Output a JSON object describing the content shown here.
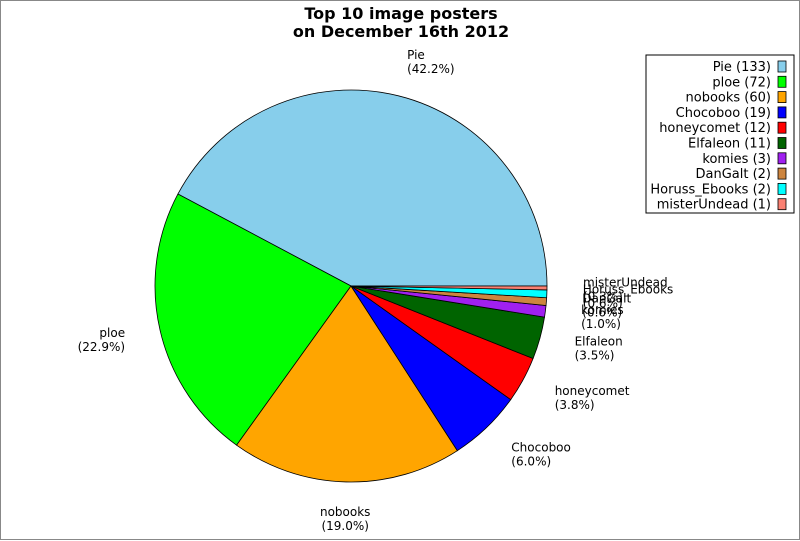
{
  "chart_data": {
    "type": "pie",
    "title": [
      "Top 10 image posters",
      "on December 16th 2012"
    ],
    "slices": [
      {
        "name": "Pie",
        "value": 133,
        "percent_label": "(42.2%)",
        "legend_label": "Pie (133)",
        "color": "#87ceeb"
      },
      {
        "name": "ploe",
        "value": 72,
        "percent_label": "(22.9%)",
        "legend_label": "ploe (72)",
        "color": "#00ff00"
      },
      {
        "name": "nobooks",
        "value": 60,
        "percent_label": "(19.0%)",
        "legend_label": "nobooks (60)",
        "color": "#ffa500"
      },
      {
        "name": "Chocoboo",
        "value": 19,
        "percent_label": "(6.0%)",
        "legend_label": "Chocoboo (19)",
        "color": "#0000ff"
      },
      {
        "name": "honeycomet",
        "value": 12,
        "percent_label": "(3.8%)",
        "legend_label": "honeycomet (12)",
        "color": "#ff0000"
      },
      {
        "name": "Elfaleon",
        "value": 11,
        "percent_label": "(3.5%)",
        "legend_label": "Elfaleon (11)",
        "color": "#006400"
      },
      {
        "name": "komies",
        "value": 3,
        "percent_label": "(1.0%)",
        "legend_label": "komies (3)",
        "color": "#a020f0"
      },
      {
        "name": "DanGalt",
        "value": 2,
        "percent_label": "(0.6%)",
        "legend_label": "DanGalt (2)",
        "color": "#cd853f"
      },
      {
        "name": "Horuss_Ebooks",
        "value": 2,
        "percent_label": "(0.6%)",
        "legend_label": "Horuss_Ebooks (2)",
        "color": "#00ffff"
      },
      {
        "name": "misterUndead",
        "value": 1,
        "percent_label": "(0.3%)",
        "legend_label": "misterUndead (1)",
        "color": "#fa8072"
      }
    ],
    "legend_position": "top-right"
  }
}
